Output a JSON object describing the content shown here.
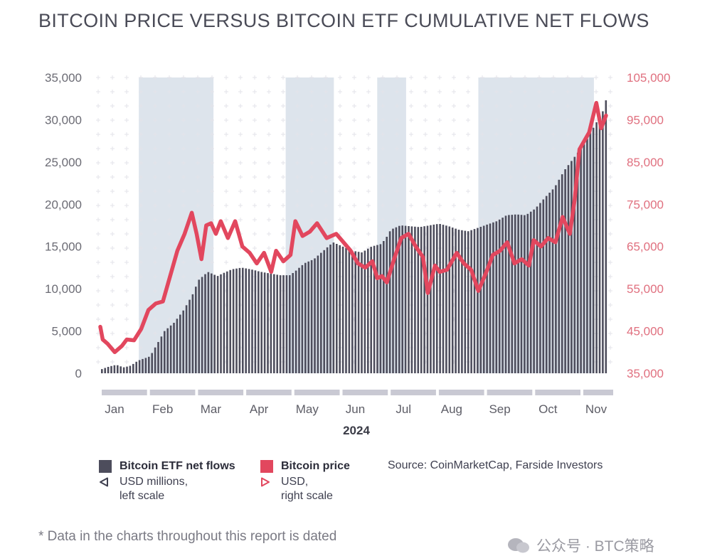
{
  "title": "BITCOIN PRICE VERSUS BITCOIN ETF CUMULATIVE NET FLOWS",
  "colors": {
    "bars": "#4d4d5c",
    "price": "#e2475e",
    "band": "#dde4ec",
    "left_axis_text": "#6b6b74",
    "right_axis_text": "#e0707f",
    "month_strip": "#c9c9d3"
  },
  "chart_data": {
    "type": "bar+line",
    "xlabel": "2024",
    "months": [
      "Jan",
      "Feb",
      "Mar",
      "Apr",
      "May",
      "Jun",
      "Jul",
      "Aug",
      "Sep",
      "Oct",
      "Nov"
    ],
    "left_axis": {
      "label": "USD millions, left scale",
      "ylim": [
        0,
        35000
      ],
      "ticks": [
        0,
        5000,
        10000,
        15000,
        20000,
        25000,
        30000,
        35000
      ],
      "tick_labels": [
        "0",
        "5,000",
        "10,000",
        "15,000",
        "20,000",
        "25,000",
        "30,000",
        "35,000"
      ]
    },
    "right_axis": {
      "label": "USD, right scale",
      "ylim": [
        35000,
        105000
      ],
      "ticks": [
        35000,
        45000,
        55000,
        65000,
        75000,
        85000,
        95000,
        105000
      ],
      "tick_labels": [
        "35,000",
        "45,000",
        "55,000",
        "65,000",
        "75,000",
        "85,000",
        "95,000",
        "105,000"
      ]
    },
    "shaded_periods_month_index": [
      [
        0.8,
        2.35
      ],
      [
        3.85,
        4.85
      ],
      [
        5.75,
        6.35
      ],
      [
        7.85,
        10.25
      ]
    ],
    "series": [
      {
        "name": "Bitcoin ETF net flows",
        "type": "bar",
        "axis": "left",
        "month_index": [
          0.0,
          0.15,
          0.3,
          0.45,
          0.6,
          0.75,
          0.9,
          1.0,
          1.15,
          1.3,
          1.5,
          1.7,
          1.9,
          2.0,
          2.2,
          2.4,
          2.5,
          2.7,
          2.9,
          3.1,
          3.3,
          3.5,
          3.7,
          3.9,
          4.0,
          4.2,
          4.4,
          4.6,
          4.8,
          5.0,
          5.2,
          5.4,
          5.6,
          5.8,
          5.9,
          6.0,
          6.2,
          6.4,
          6.6,
          6.8,
          7.0,
          7.2,
          7.4,
          7.6,
          7.8,
          8.0,
          8.2,
          8.4,
          8.6,
          8.8,
          9.0,
          9.2,
          9.4,
          9.6,
          9.8,
          10.0,
          10.2,
          10.4,
          10.5
        ],
        "values": [
          500,
          800,
          1000,
          700,
          900,
          1500,
          1800,
          2000,
          3500,
          5000,
          6000,
          7500,
          9500,
          11000,
          12000,
          11500,
          11800,
          12300,
          12500,
          12300,
          12000,
          11800,
          11600,
          11600,
          12000,
          13000,
          13500,
          14500,
          15500,
          15000,
          14500,
          14300,
          15000,
          15300,
          16000,
          17000,
          17500,
          17400,
          17300,
          17500,
          17700,
          17400,
          17000,
          16800,
          17200,
          17600,
          18000,
          18700,
          18800,
          18700,
          19500,
          20800,
          22000,
          24000,
          25500,
          27000,
          29000,
          31000,
          33000
        ]
      },
      {
        "name": "Bitcoin price",
        "type": "line",
        "axis": "right",
        "month_index": [
          0.0,
          0.05,
          0.15,
          0.3,
          0.45,
          0.55,
          0.7,
          0.85,
          1.0,
          1.15,
          1.3,
          1.45,
          1.6,
          1.75,
          1.9,
          2.0,
          2.1,
          2.2,
          2.3,
          2.4,
          2.5,
          2.65,
          2.8,
          2.95,
          3.1,
          3.25,
          3.4,
          3.55,
          3.65,
          3.8,
          3.95,
          4.05,
          4.2,
          4.35,
          4.5,
          4.7,
          4.9,
          5.05,
          5.2,
          5.35,
          5.5,
          5.65,
          5.75,
          5.85,
          5.95,
          6.1,
          6.25,
          6.4,
          6.55,
          6.7,
          6.8,
          6.95,
          7.05,
          7.2,
          7.4,
          7.55,
          7.7,
          7.85,
          8.0,
          8.15,
          8.3,
          8.45,
          8.6,
          8.75,
          8.9,
          9.0,
          9.15,
          9.3,
          9.45,
          9.6,
          9.75,
          9.85,
          9.95,
          10.05,
          10.15,
          10.3,
          10.4,
          10.5
        ],
        "values": [
          46000,
          43000,
          42000,
          40000,
          41500,
          43000,
          42800,
          45500,
          50000,
          51500,
          52000,
          58000,
          64000,
          68000,
          73000,
          68000,
          62000,
          70000,
          70500,
          68000,
          71000,
          67000,
          71000,
          65000,
          63500,
          61000,
          63500,
          59000,
          64000,
          61500,
          63000,
          71000,
          67500,
          68500,
          70500,
          67000,
          68000,
          66000,
          64000,
          61000,
          60000,
          61500,
          57500,
          58000,
          56500,
          62000,
          67000,
          68000,
          65000,
          62500,
          54000,
          60500,
          59000,
          59500,
          63500,
          61000,
          59500,
          54500,
          58500,
          63000,
          64000,
          66000,
          61000,
          62000,
          60500,
          66500,
          65000,
          67000,
          66000,
          72000,
          68000,
          76000,
          88000,
          90000,
          92000,
          99000,
          93000,
          96000
        ]
      }
    ]
  },
  "legend": [
    {
      "name": "Bitcoin ETF net flows",
      "desc_line1": "USD millions,",
      "desc_line2": "left scale"
    },
    {
      "name": "Bitcoin price",
      "desc_line1": "USD,",
      "desc_line2": "right scale"
    }
  ],
  "source": "Source: CoinMarketCap, Farside Investors",
  "footnote": "* Data in the charts throughout this report is dated",
  "watermark": "公众号 · BTC策略"
}
